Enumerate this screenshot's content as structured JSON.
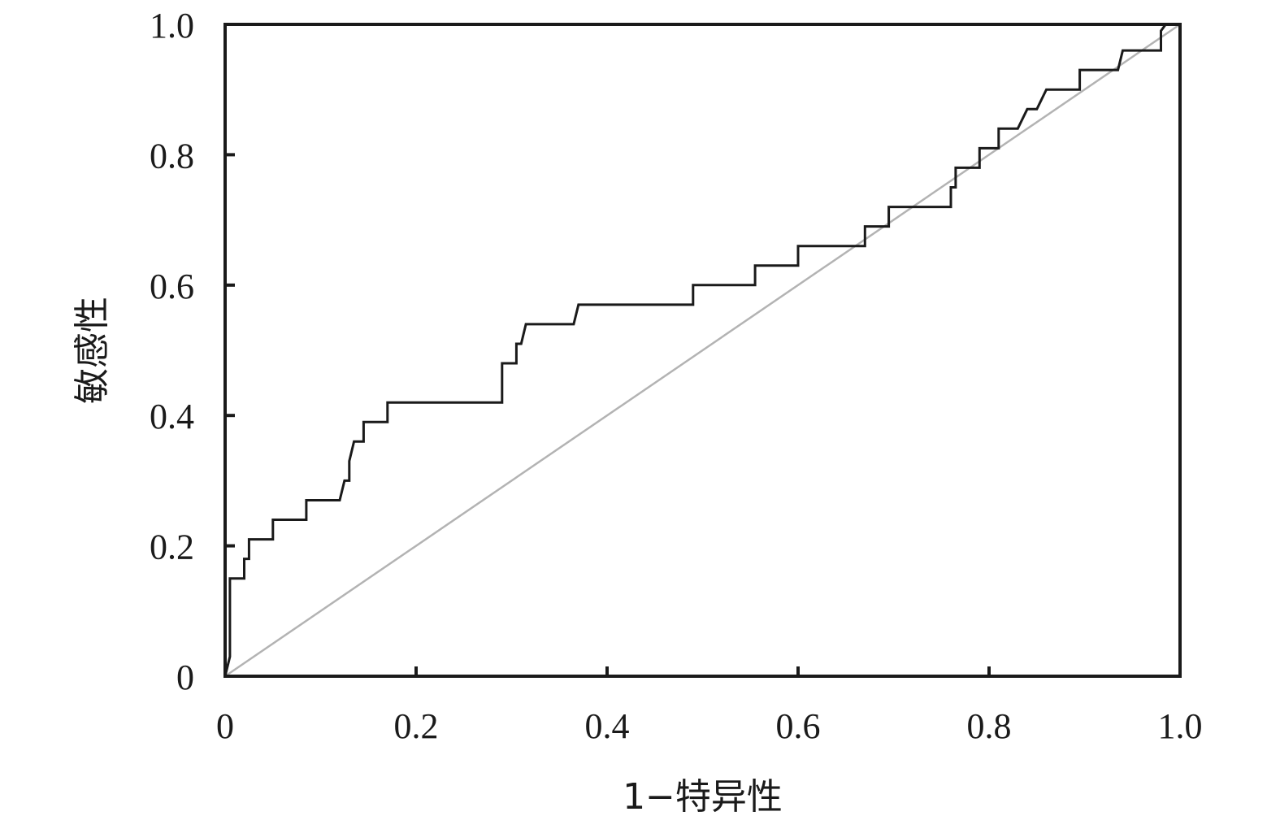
{
  "chart_data": {
    "type": "line",
    "title": "",
    "xlabel": "1−特异性",
    "ylabel": "敏感性",
    "xlim": [
      0,
      1
    ],
    "ylim": [
      0,
      1
    ],
    "xticks": [
      "0",
      "0.2",
      "0.4",
      "0.6",
      "0.8",
      "1.0"
    ],
    "yticks": [
      "0",
      "0.2",
      "0.4",
      "0.6",
      "0.8",
      "1.0"
    ],
    "grid": false,
    "legend": "none",
    "series": [
      {
        "color": "#1a1a1a",
        "points": [
          [
            0.0,
            0.0
          ],
          [
            0.005,
            0.03
          ],
          [
            0.005,
            0.15
          ],
          [
            0.02,
            0.15
          ],
          [
            0.02,
            0.18
          ],
          [
            0.025,
            0.18
          ],
          [
            0.025,
            0.21
          ],
          [
            0.05,
            0.21
          ],
          [
            0.05,
            0.24
          ],
          [
            0.085,
            0.24
          ],
          [
            0.085,
            0.27
          ],
          [
            0.12,
            0.27
          ],
          [
            0.125,
            0.3
          ],
          [
            0.13,
            0.3
          ],
          [
            0.13,
            0.33
          ],
          [
            0.135,
            0.36
          ],
          [
            0.145,
            0.36
          ],
          [
            0.145,
            0.39
          ],
          [
            0.17,
            0.39
          ],
          [
            0.17,
            0.42
          ],
          [
            0.29,
            0.42
          ],
          [
            0.29,
            0.48
          ],
          [
            0.305,
            0.48
          ],
          [
            0.305,
            0.51
          ],
          [
            0.31,
            0.51
          ],
          [
            0.315,
            0.54
          ],
          [
            0.365,
            0.54
          ],
          [
            0.37,
            0.57
          ],
          [
            0.49,
            0.57
          ],
          [
            0.49,
            0.6
          ],
          [
            0.555,
            0.6
          ],
          [
            0.555,
            0.63
          ],
          [
            0.6,
            0.63
          ],
          [
            0.6,
            0.66
          ],
          [
            0.67,
            0.66
          ],
          [
            0.67,
            0.69
          ],
          [
            0.695,
            0.69
          ],
          [
            0.695,
            0.72
          ],
          [
            0.76,
            0.72
          ],
          [
            0.76,
            0.75
          ],
          [
            0.765,
            0.75
          ],
          [
            0.765,
            0.78
          ],
          [
            0.79,
            0.78
          ],
          [
            0.79,
            0.81
          ],
          [
            0.81,
            0.81
          ],
          [
            0.81,
            0.84
          ],
          [
            0.83,
            0.84
          ],
          [
            0.84,
            0.87
          ],
          [
            0.85,
            0.87
          ],
          [
            0.86,
            0.9
          ],
          [
            0.895,
            0.9
          ],
          [
            0.895,
            0.93
          ],
          [
            0.935,
            0.93
          ],
          [
            0.94,
            0.96
          ],
          [
            0.98,
            0.96
          ],
          [
            0.98,
            0.99
          ],
          [
            0.985,
            1.0
          ]
        ]
      },
      {
        "color": "#b3b3b3",
        "points": [
          [
            0,
            0
          ],
          [
            1,
            1
          ]
        ]
      }
    ]
  }
}
